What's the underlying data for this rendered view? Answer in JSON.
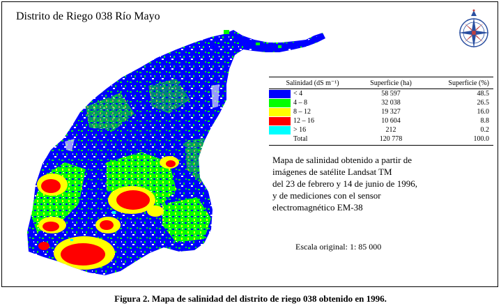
{
  "map": {
    "title": "Distrito de Riego 038 Río Mayo",
    "colors": {
      "c1": "#0000ff",
      "c2": "#00ff00",
      "c3": "#ffff00",
      "c4": "#ff0000",
      "c5": "#00ffff"
    }
  },
  "legend": {
    "header": {
      "salinity": "Salinidad (dS m⁻¹)",
      "area_ha": "Superficie (ha)",
      "area_pct": "Superficie (%)"
    },
    "rows": [
      {
        "label": "< 4",
        "area": "58 597",
        "pct": "48.5",
        "color": "#0000ff"
      },
      {
        "label": "4 – 8",
        "area": "32 038",
        "pct": "26.5",
        "color": "#00ff00"
      },
      {
        "label": "8 – 12",
        "area": "19 327",
        "pct": "16.0",
        "color": "#ffff00"
      },
      {
        "label": "12 – 16",
        "area": "10 604",
        "pct": "8.8",
        "color": "#ff0000"
      },
      {
        "label": "> 16",
        "area": "212",
        "pct": "0.2",
        "color": "#00ffff"
      }
    ],
    "total": {
      "label": "Total",
      "area": "120 778",
      "pct": "100.0"
    }
  },
  "description": {
    "lines": [
      "Mapa de salinidad obtenido a partir de",
      "imágenes de satélite Landsat TM",
      "del 23 de febrero y 14 de junio de 1996,",
      "y de mediciones con el sensor",
      "electromagnético EM-38"
    ]
  },
  "scale": {
    "text": "Escala original: 1: 85 000"
  },
  "caption": {
    "text": "Figura 2. Mapa de salinidad del distrito de riego 038 obtenido en 1996."
  },
  "compass": {
    "icon": "compass-rose-icon"
  }
}
